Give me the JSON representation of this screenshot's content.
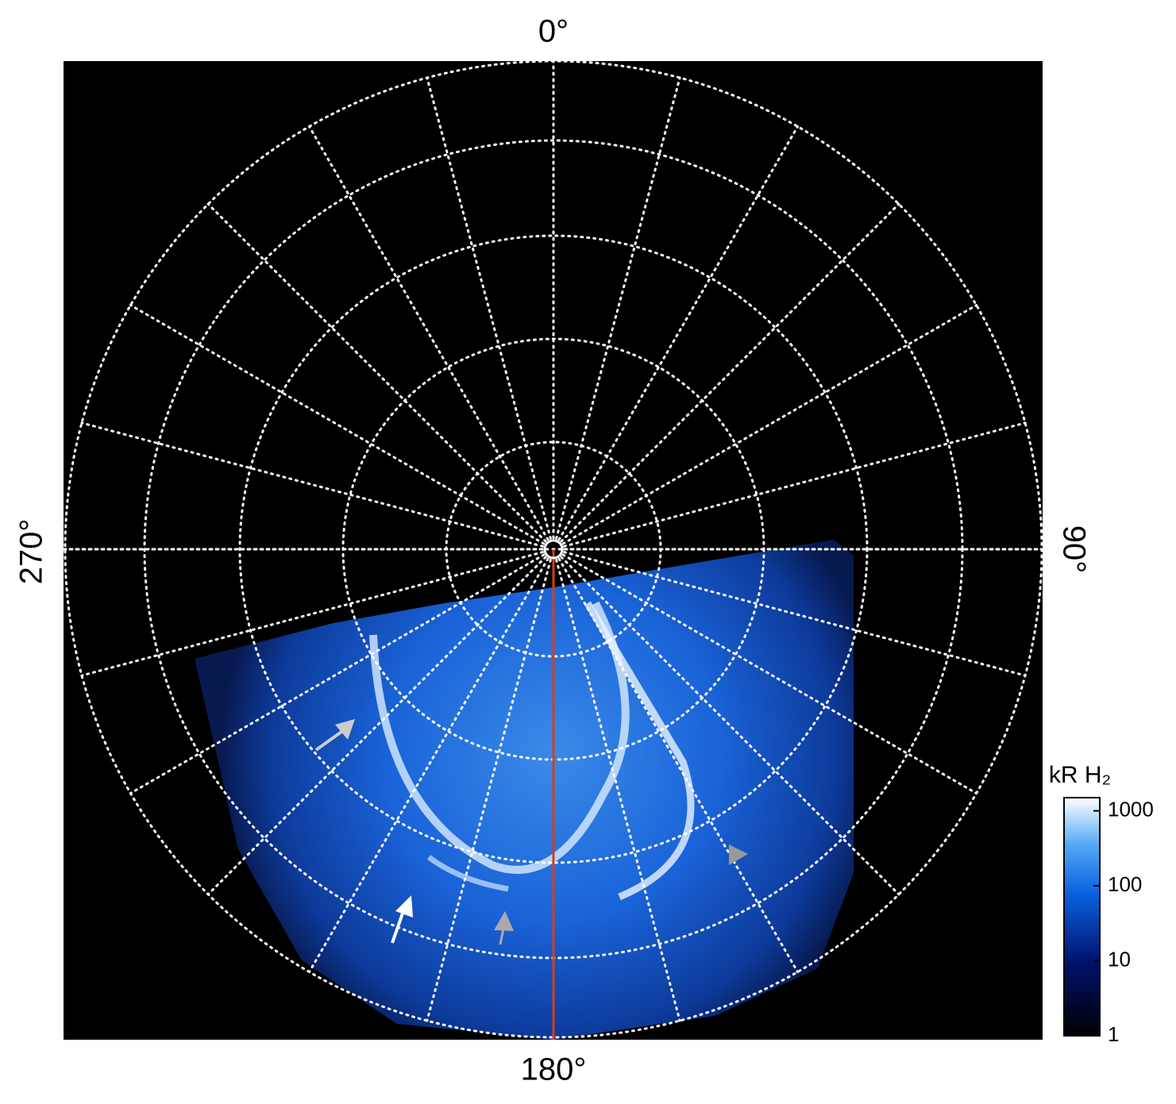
{
  "chart_data": {
    "type": "polar-image",
    "angle_labels": {
      "top": "0°",
      "right": "90°",
      "bottom": "180°",
      "left": "270°"
    },
    "colorbar": {
      "title": "kR H₂",
      "log": true,
      "lim": [
        1,
        1500
      ],
      "ticks": [
        1,
        10,
        100,
        1000
      ]
    }
  }
}
